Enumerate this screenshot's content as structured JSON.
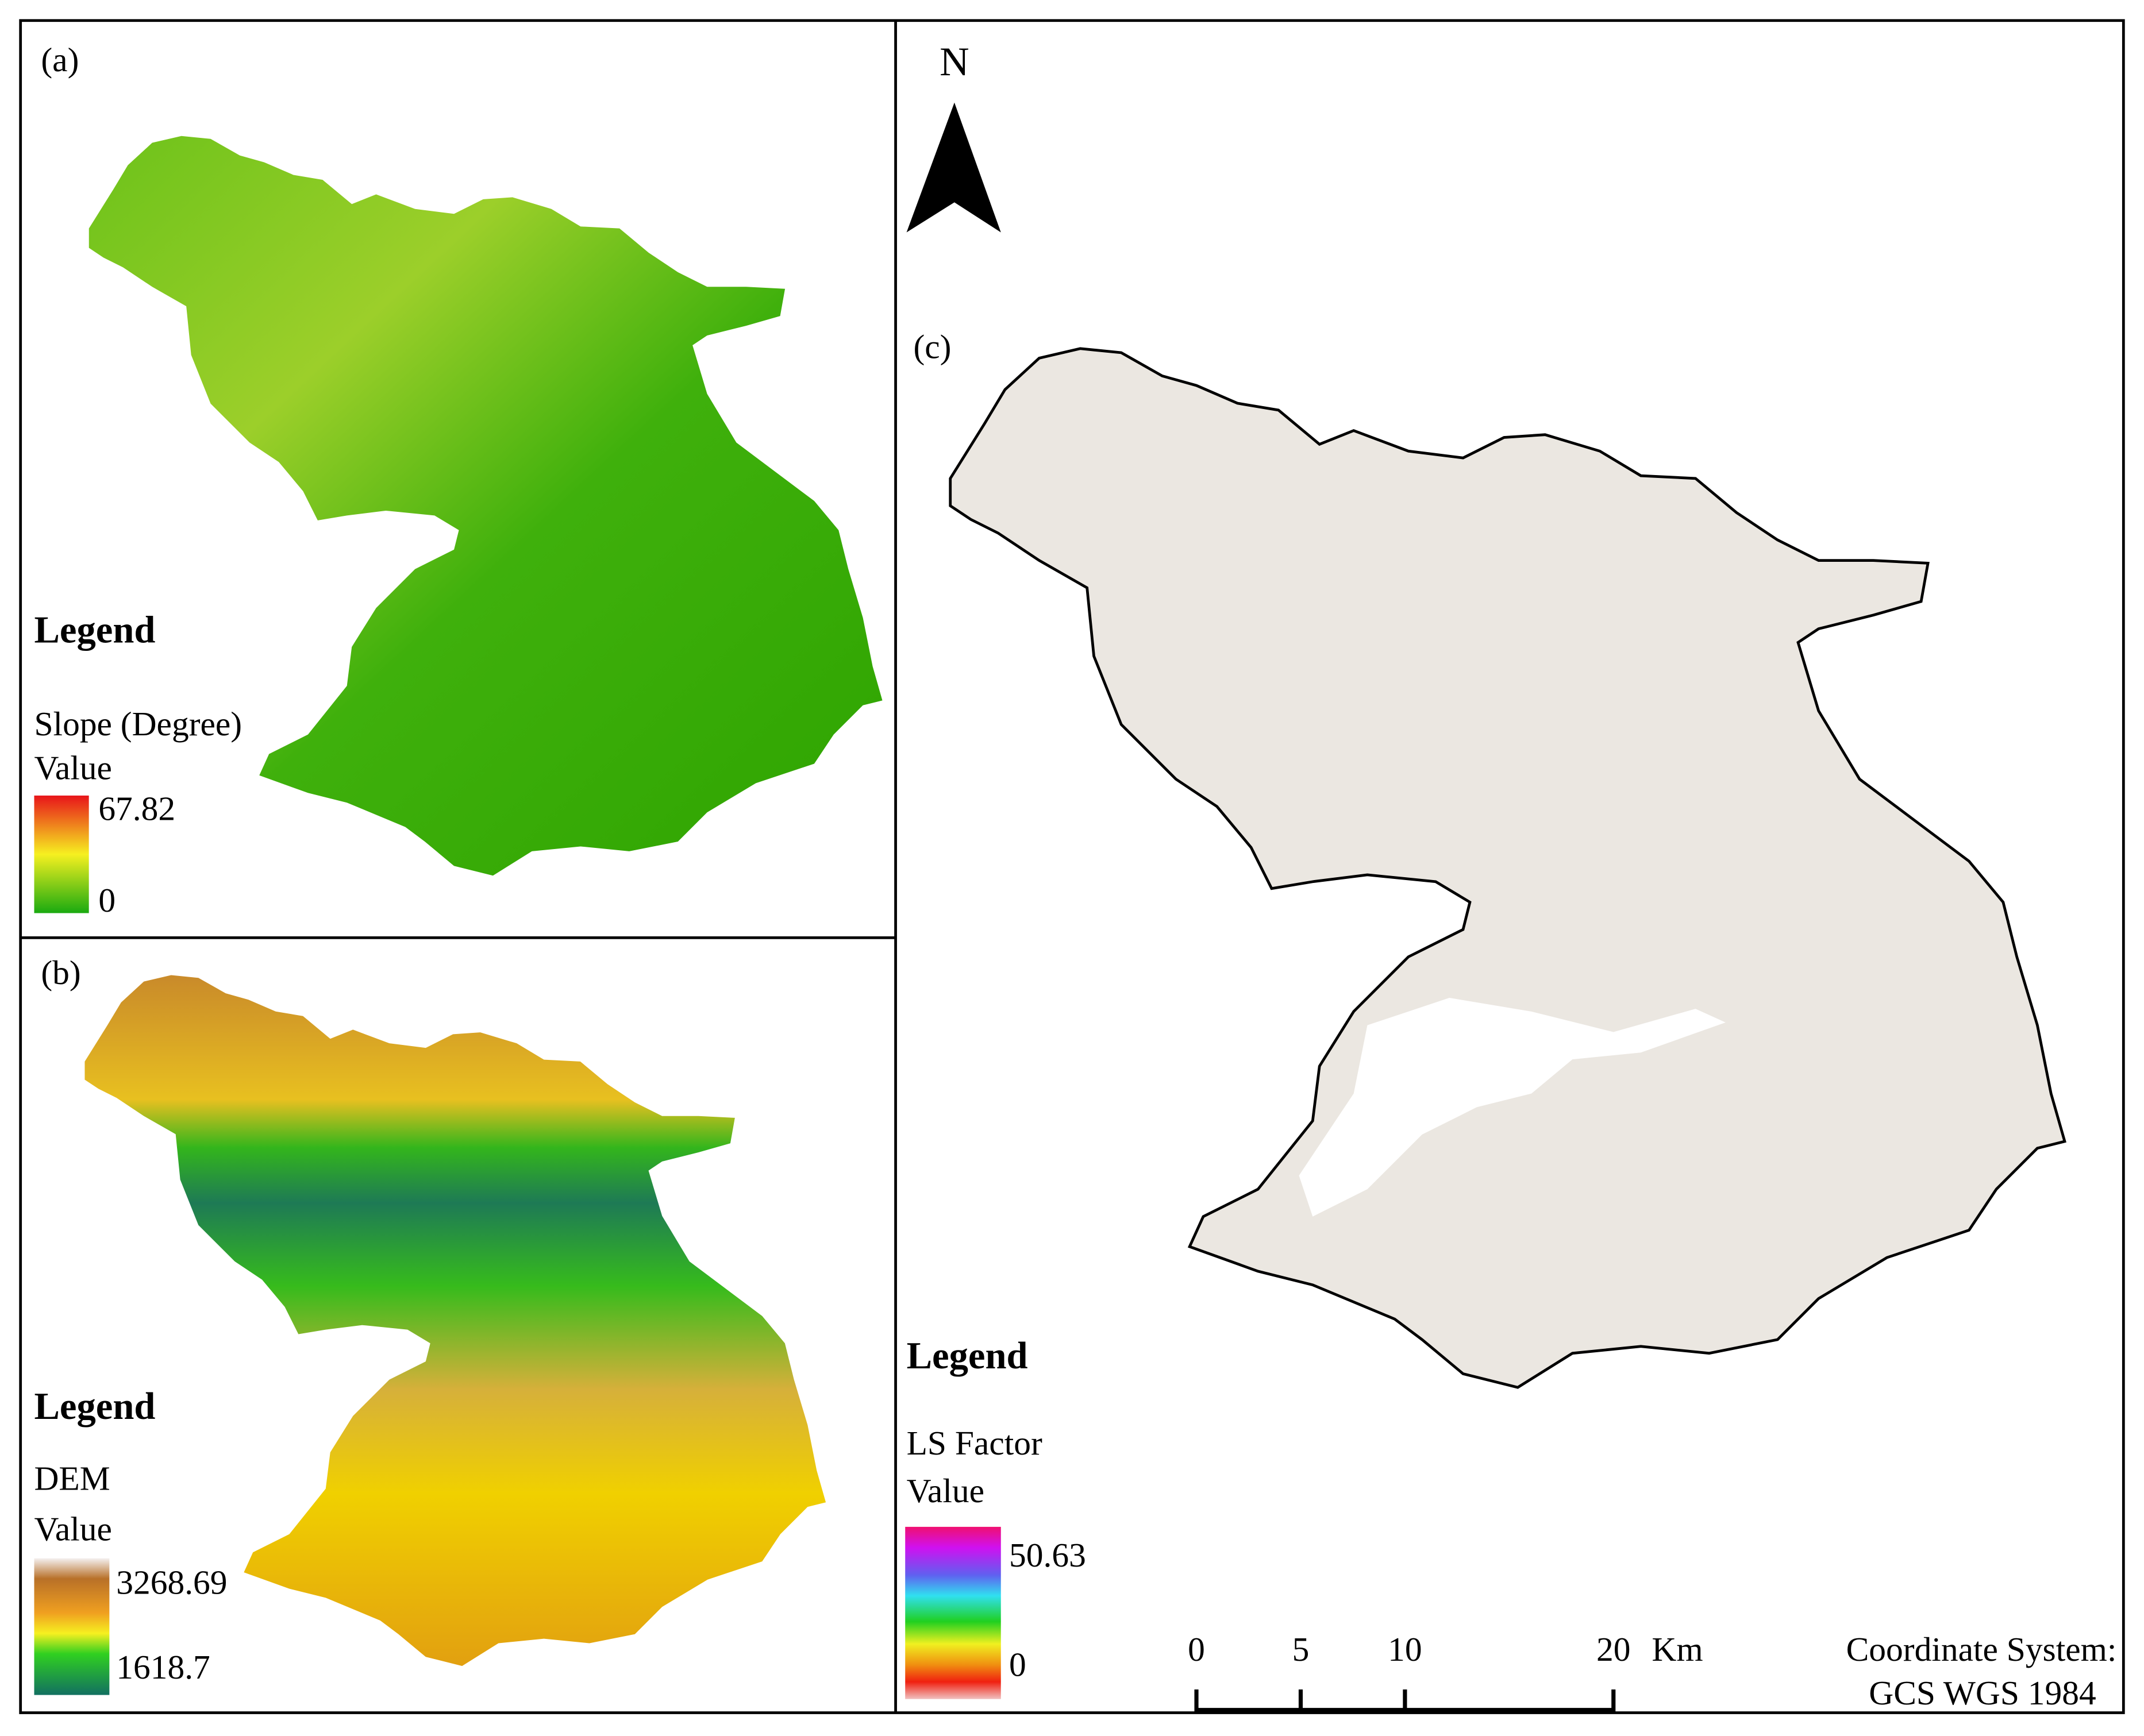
{
  "panels": [
    {
      "label": "(a)",
      "legend_title": "Legend",
      "layer": "Slope (Degree)",
      "field": "Value",
      "max": 67.82,
      "min": 0
    },
    {
      "label": "(b)",
      "legend_title": "Legend",
      "layer": "DEM",
      "field": "Value",
      "max": 3268.69,
      "min": 1618.7
    },
    {
      "label": "(c)",
      "legend_title": "Legend",
      "layer": "LS Factor",
      "field": "Value",
      "max": 50.63,
      "min": 0
    }
  ],
  "north_arrow": "N",
  "scale_bar": {
    "ticks": [
      0,
      5,
      10,
      20
    ],
    "unit": "Km"
  },
  "coordinate_system": [
    "Coordinate System:",
    "GCS WGS 1984"
  ]
}
